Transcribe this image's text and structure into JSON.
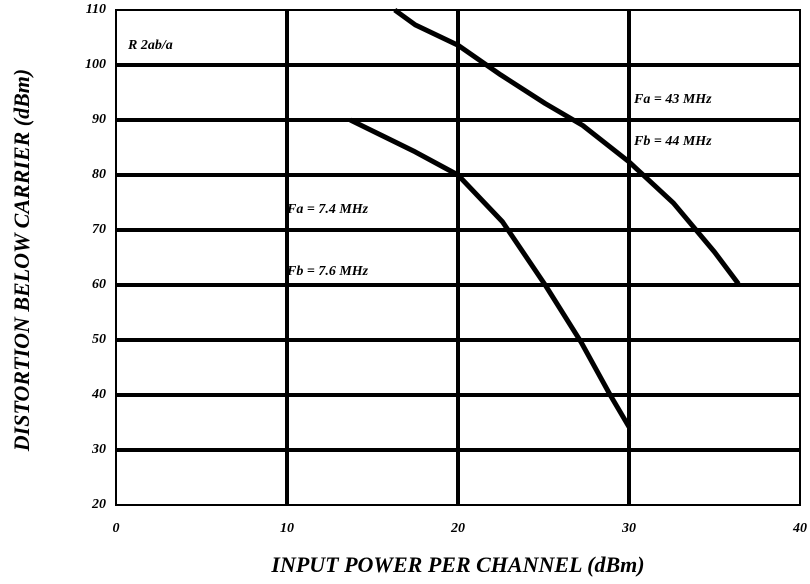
{
  "chart_data": {
    "type": "line",
    "xlabel": "INPUT POWER PER CHANNEL (dBm)",
    "ylabel": "DISTORTION BELOW CARRIER (dBm)",
    "annotations": [
      "R 2ab/a",
      "Fa = 43 MHz",
      "Fb = 44 MHz",
      "Fa = 7.4 MHz",
      "Fb = 7.6 MHz"
    ],
    "series": [
      {
        "color": "#000000",
        "x": [
          13.7,
          17.5,
          20,
          22.6,
          25.1,
          27.2,
          28.9,
          30
        ],
        "values": [
          90,
          84.2,
          80,
          71.5,
          60,
          49.6,
          40,
          34.2
        ]
      },
      {
        "color": "#000000",
        "x": [
          16.3,
          17.5,
          20,
          22.5,
          25.1,
          27.3,
          30,
          32.6,
          35,
          36.4
        ],
        "values": [
          110,
          107.3,
          103.6,
          98.2,
          93,
          89,
          82.4,
          74.9,
          66,
          60.2
        ]
      }
    ],
    "xlim": [
      0,
      40
    ],
    "xticks": [
      0,
      10,
      20,
      30,
      40
    ],
    "ylim": [
      20,
      110
    ],
    "yticks": [
      20,
      30,
      40,
      50,
      60,
      70,
      80,
      90,
      100,
      110
    ],
    "grid": true
  }
}
